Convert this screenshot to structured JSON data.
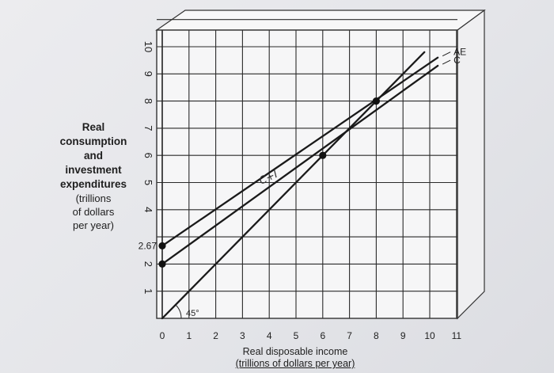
{
  "chart_data": {
    "type": "line",
    "xlabel": "Real disposable income",
    "xlabel_units": "(trillions of dollars per year)",
    "ylabel_lines": [
      "Real",
      "consumption",
      "and",
      "investment",
      "expenditures"
    ],
    "ylabel_units_lines": [
      "(trillions",
      "of dollars",
      "per year)"
    ],
    "xlim": [
      0,
      11
    ],
    "ylim": [
      0,
      11
    ],
    "x_ticks": [
      "0",
      "1",
      "2",
      "3",
      "4",
      "5",
      "6",
      "7",
      "8",
      "9",
      "10",
      "11"
    ],
    "y_ticks": [
      "1",
      "2",
      "4",
      "5",
      "6",
      "7",
      "8",
      "9",
      "10"
    ],
    "y_special_tick": "2.67",
    "y_special_value": 2.67,
    "grid": true,
    "series": [
      {
        "name": "AE",
        "x": [
          0,
          10.3
        ],
        "y": [
          2.67,
          9.6
        ]
      },
      {
        "name": "C",
        "x": [
          0,
          10.3
        ],
        "y": [
          2,
          9.3
        ]
      },
      {
        "name": "",
        "x": [
          0,
          9.8
        ],
        "y": [
          0,
          9.8
        ]
      }
    ],
    "points": [
      {
        "x": 0,
        "y": 2.67
      },
      {
        "x": 0,
        "y": 2
      },
      {
        "x": 6,
        "y": 6
      },
      {
        "x": 8,
        "y": 8
      }
    ],
    "annotations": {
      "angle": "45°",
      "handwritten": "C+I"
    },
    "colors": {
      "line": "#1a1a1a",
      "grid": "#2a2a2a",
      "frame": "#333333",
      "background": "#f2f2f3"
    }
  }
}
